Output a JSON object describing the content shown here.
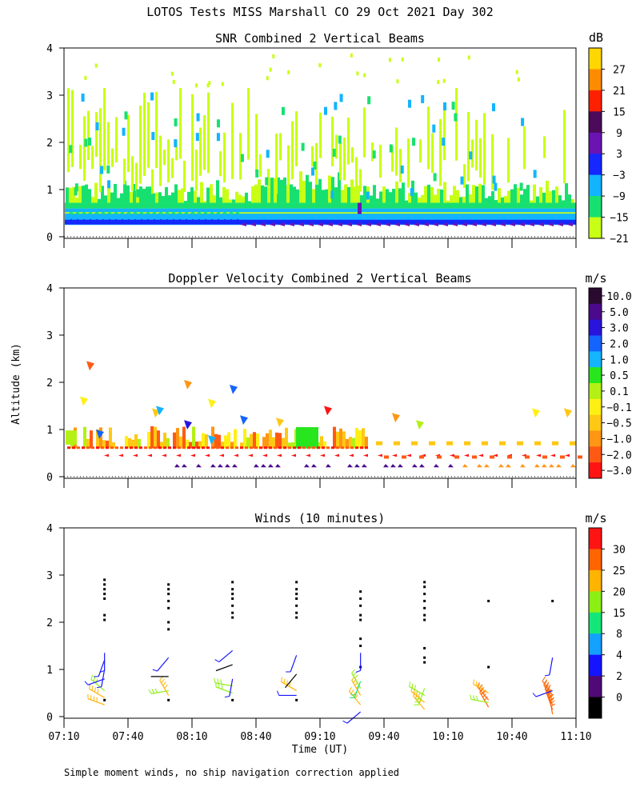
{
  "figure": {
    "title": "LOTOS Tests MISS Marshall CO  29 Oct 2021 Day 302",
    "ylabel": "Altitude (km)",
    "xlabel": "Time (UT)",
    "footnote": "Simple moment winds, no ship navigation correction applied",
    "x_ticks": [
      "07:10",
      "07:40",
      "08:10",
      "08:40",
      "09:10",
      "09:40",
      "10:10",
      "10:40",
      "11:10"
    ],
    "y_ticks": [
      "0",
      "1",
      "2",
      "3",
      "4"
    ]
  },
  "chart_data": [
    {
      "type": "heatmap",
      "title": "SNR Combined 2 Vertical Beams",
      "units": "dB",
      "xlim": [
        "07:10",
        "11:10"
      ],
      "ylim": [
        0,
        4
      ],
      "colorbar": {
        "tick_labels": [
          "27",
          "21",
          "15",
          "9",
          "3",
          "−3",
          "−9",
          "−15",
          "−21"
        ],
        "colors": [
          "#ffd700",
          "#ff8c00",
          "#ff2000",
          "#4b0a5a",
          "#6a14b4",
          "#1428ff",
          "#12b4ff",
          "#18e070",
          "#c8ff14"
        ]
      },
      "summary": {
        "strong_layer_km": [
          0.25,
          0.6
        ],
        "clutter_top_km": 3.9
      }
    },
    {
      "type": "heatmap",
      "title": "Doppler Velocity Combined 2 Vertical Beams",
      "units": "m/s",
      "xlim": [
        "07:10",
        "11:10"
      ],
      "ylim": [
        0,
        4
      ],
      "colorbar": {
        "tick_labels": [
          "10.0",
          "5.0",
          "3.0",
          "2.0",
          "1.0",
          "0.5",
          "0.1",
          "−0.1",
          "−0.5",
          "−1.0",
          "−2.0",
          "−3.0"
        ],
        "colors": [
          "#2a0a30",
          "#4b0a8c",
          "#2814dc",
          "#1464ff",
          "#14b4ff",
          "#28e61e",
          "#b4f014",
          "#fff014",
          "#ffc814",
          "#ff9614",
          "#ff5a14",
          "#ff1414"
        ]
      }
    },
    {
      "type": "scatter",
      "title": "Winds (10 minutes)",
      "units": "m/s",
      "xlim": [
        "07:10",
        "11:10"
      ],
      "ylim": [
        0,
        4
      ],
      "colorbar": {
        "tick_labels": [
          "30",
          "25",
          "20",
          "15",
          "8",
          "4",
          "2",
          "0"
        ],
        "colors": [
          "#ff1414",
          "#ff6400",
          "#ffb400",
          "#8cf014",
          "#14e678",
          "#14a0ff",
          "#1414ff",
          "#500a78",
          "#000000"
        ]
      },
      "wind_profiles": [
        {
          "time": "07:29",
          "missing_heights_km": [
            0.35,
            2.05,
            2.15,
            2.5,
            2.6,
            2.7,
            2.8,
            2.9
          ],
          "barbs": [
            {
              "h": 0.25,
              "speed": 20,
              "dir": 290
            },
            {
              "h": 0.4,
              "speed": 20,
              "dir": 300
            },
            {
              "h": 0.55,
              "speed": 15,
              "dir": 310
            },
            {
              "h": 0.8,
              "speed": 4,
              "dir": 250
            },
            {
              "h": 1.0,
              "speed": 4,
              "dir": 190
            },
            {
              "h": 1.2,
              "speed": 4,
              "dir": 200
            },
            {
              "h": 1.35,
              "speed": 4,
              "dir": 180
            }
          ]
        },
        {
          "time": "07:59",
          "missing_heights_km": [
            0.35,
            1.85,
            2.0,
            2.3,
            2.45,
            2.6,
            2.7,
            2.8
          ],
          "barbs": [
            {
              "h": 0.45,
              "speed": 20,
              "dir": 330
            },
            {
              "h": 0.55,
              "speed": 15,
              "dir": 260
            },
            {
              "h": 0.85,
              "speed": 0,
              "dir": 270
            },
            {
              "h": 1.25,
              "speed": 4,
              "dir": 220
            }
          ]
        },
        {
          "time": "08:29",
          "missing_heights_km": [
            0.35,
            2.1,
            2.2,
            2.35,
            2.5,
            2.6,
            2.7,
            2.85
          ],
          "barbs": [
            {
              "h": 0.5,
              "speed": 15,
              "dir": 290
            },
            {
              "h": 0.65,
              "speed": 15,
              "dir": 280
            },
            {
              "h": 0.8,
              "speed": 4,
              "dir": 190
            },
            {
              "h": 1.1,
              "speed": 0,
              "dir": 250
            },
            {
              "h": 1.4,
              "speed": 4,
              "dir": 230
            }
          ]
        },
        {
          "time": "08:59",
          "missing_heights_km": [
            0.35,
            2.1,
            2.2,
            2.35,
            2.5,
            2.6,
            2.7,
            2.85
          ],
          "barbs": [
            {
              "h": 0.45,
              "speed": 4,
              "dir": 270
            },
            {
              "h": 0.55,
              "speed": 20,
              "dir": 300
            },
            {
              "h": 0.9,
              "speed": 0,
              "dir": 220
            },
            {
              "h": 1.3,
              "speed": 4,
              "dir": 200
            }
          ]
        },
        {
          "time": "09:29",
          "missing_heights_km": [
            1.05,
            1.5,
            1.65,
            2.05,
            2.15,
            2.35,
            2.5,
            2.65
          ],
          "barbs": [
            {
              "h": 0.1,
              "speed": 4,
              "dir": 230
            },
            {
              "h": 0.25,
              "speed": 20,
              "dir": 320
            },
            {
              "h": 0.45,
              "speed": 20,
              "dir": 330
            },
            {
              "h": 0.6,
              "speed": 15,
              "dir": 330
            },
            {
              "h": 0.75,
              "speed": 8,
              "dir": 200
            },
            {
              "h": 1.35,
              "speed": 4,
              "dir": 180
            }
          ]
        },
        {
          "time": "09:59",
          "missing_heights_km": [
            1.15,
            1.25,
            1.45,
            2.05,
            2.15,
            2.3,
            2.45,
            2.6,
            2.75,
            2.85
          ],
          "barbs": [
            {
              "h": 0.15,
              "speed": 20,
              "dir": 320
            },
            {
              "h": 0.3,
              "speed": 20,
              "dir": 310
            },
            {
              "h": 0.45,
              "speed": 15,
              "dir": 300
            },
            {
              "h": 0.6,
              "speed": 15,
              "dir": 200
            }
          ]
        },
        {
          "time": "10:29",
          "missing_heights_km": [
            1.05,
            2.45
          ],
          "barbs": [
            {
              "h": 0.2,
              "speed": 25,
              "dir": 330
            },
            {
              "h": 0.35,
              "speed": 25,
              "dir": 320
            },
            {
              "h": 0.5,
              "speed": 20,
              "dir": 300
            },
            {
              "h": 0.3,
              "speed": 15,
              "dir": 280
            }
          ]
        },
        {
          "time": "10:59",
          "missing_heights_km": [
            2.45
          ],
          "barbs": [
            {
              "h": 0.05,
              "speed": 25,
              "dir": 350
            },
            {
              "h": 0.15,
              "speed": 25,
              "dir": 340
            },
            {
              "h": 0.25,
              "speed": 25,
              "dir": 335
            },
            {
              "h": 0.35,
              "speed": 25,
              "dir": 330
            },
            {
              "h": 0.45,
              "speed": 25,
              "dir": 325
            },
            {
              "h": 0.55,
              "speed": 4,
              "dir": 250
            },
            {
              "h": 1.25,
              "speed": 4,
              "dir": 190
            }
          ]
        }
      ]
    }
  ]
}
